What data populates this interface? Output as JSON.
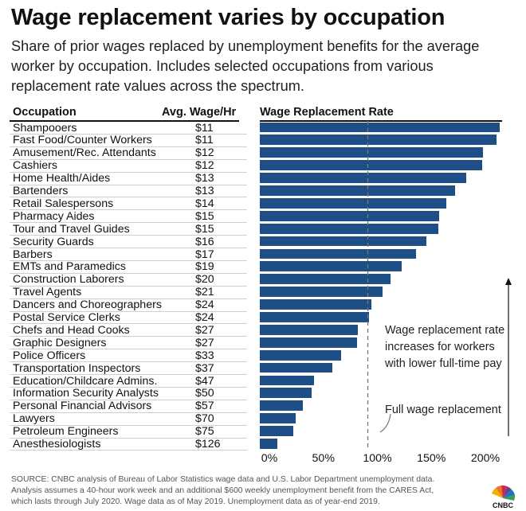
{
  "header": {
    "title": "Wage replacement varies by occupation",
    "subtitle": "Share of prior wages replaced by unemployment benefits for the average worker by occupation. Includes selected occupations from various replacement rate values across the spectrum."
  },
  "columns": {
    "occupation": "Occupation",
    "wage": "Avg. Wage/Hr",
    "rate": "Wage Replacement Rate"
  },
  "annotations": {
    "trend_line1": "Wage replacement rate",
    "trend_line2": "increases for workers",
    "trend_line3": "with lower full-time pay",
    "full": "Full wage replacement"
  },
  "footer": {
    "line1": "SOURCE: CNBC analysis of Bureau of Labor Statistics wage data and U.S. Labor Department unemployment data.",
    "line2": "Analysis assumes a 40-hour work week and an additional $600 weekly unemployment benefit from the CARES Act,",
    "line3": "which lasts through July 2020.  Wage data as of May 2019. Unemployment data as of year-end 2019."
  },
  "logo": {
    "text": "CNBC",
    "icon": "cnbc-peacock-logo"
  },
  "colors": {
    "bar": "#1d4e85",
    "reference_line": "#777777"
  },
  "chart_data": {
    "type": "bar",
    "orientation": "horizontal",
    "categories": [
      "Shampooers",
      "Fast Food/Counter Workers",
      "Amusement/Rec. Attendants",
      "Cashiers",
      "Home Health/Aides",
      "Bartenders",
      "Retail Salespersons",
      "Pharmacy Aides",
      "Tour and Travel Guides",
      "Security Guards",
      "Barbers",
      "EMTs and Paramedics",
      "Construction Laborers",
      "Travel Agents",
      "Dancers and Choreographers",
      "Postal Service Clerks",
      "Chefs and Head Cooks",
      "Graphic Designers",
      "Police Officers",
      "Transportation Inspectors",
      "Education/Childcare Admins.",
      "Information Security Analysts",
      "Personal Financial Advisors",
      "Lawyers",
      "Petroleum Engineers",
      "Anesthesiologists"
    ],
    "wages": [
      "$11",
      "$11",
      "$12",
      "$12",
      "$13",
      "$13",
      "$14",
      "$15",
      "$15",
      "$16",
      "$17",
      "$19",
      "$20",
      "$21",
      "$24",
      "$24",
      "$27",
      "$27",
      "$33",
      "$37",
      "$47",
      "$50",
      "$57",
      "$70",
      "$75",
      "$126"
    ],
    "values": [
      222,
      219,
      207,
      206,
      191,
      181,
      173,
      166,
      165,
      154,
      145,
      131,
      121,
      114,
      103,
      101,
      91,
      90,
      75,
      67,
      50,
      48,
      40,
      33,
      31,
      16
    ],
    "unit": "%",
    "xlim": [
      0,
      240
    ],
    "xticks": [
      0,
      50,
      100,
      150,
      200
    ],
    "xtick_labels": [
      "0%",
      "50%",
      "100%",
      "150%",
      "200%"
    ],
    "reference_value": 100
  }
}
